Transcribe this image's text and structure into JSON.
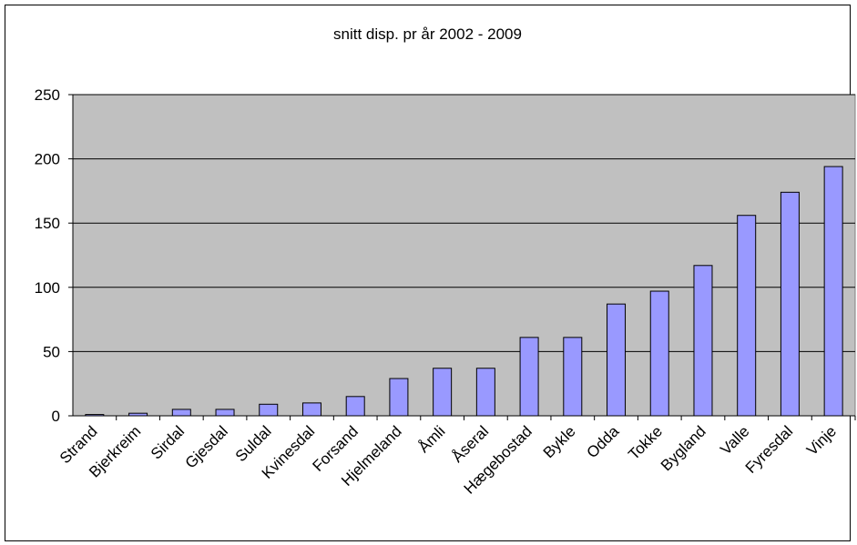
{
  "chart_data": {
    "type": "bar",
    "title": "snitt disp. pr år 2002 - 2009",
    "xlabel": "",
    "ylabel": "",
    "ylim": [
      0,
      250
    ],
    "yticks": [
      0,
      50,
      100,
      150,
      200,
      250
    ],
    "grid": true,
    "legend": "none",
    "categories": [
      "Strand",
      "Bjerkreim",
      "Sirdal",
      "Gjesdal",
      "Suldal",
      "Kvinesdal",
      "Forsand",
      "Hjelmeland",
      "Åmli",
      "Åseral",
      "Hægebostad",
      "Bykle",
      "Odda",
      "Tokke",
      "Bygland",
      "Valle",
      "Fyresdal",
      "Vinje"
    ],
    "values": [
      1,
      2,
      5,
      5,
      9,
      10,
      15,
      29,
      37,
      37,
      61,
      61,
      87,
      97,
      117,
      156,
      174,
      194
    ],
    "colors": {
      "plot_background": "#c0c0c0",
      "bar_fill": "#9999ff",
      "bar_stroke": "#000000",
      "gridline": "#000000"
    }
  }
}
